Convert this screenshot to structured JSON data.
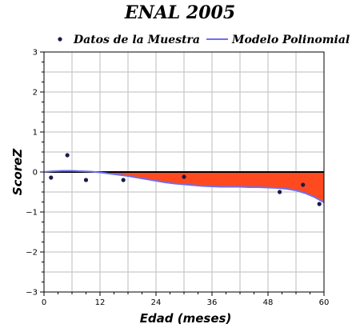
{
  "chart_data": {
    "type": "scatter",
    "title": "ENAL 2005",
    "xlabel": "Edad (meses)",
    "ylabel": "ScoreZ",
    "xlim": [
      0,
      60
    ],
    "ylim": [
      -3,
      3
    ],
    "x_ticks": [
      0,
      12,
      24,
      36,
      48,
      60
    ],
    "y_ticks": [
      -3,
      -2,
      -1,
      0,
      1,
      2,
      3
    ],
    "grid": true,
    "legend_position": "top",
    "colors": {
      "points": "#1a1a4e",
      "model_line": "#6f6ff0",
      "fill": "#ff4a1f",
      "reference_line": "#000000"
    },
    "series": [
      {
        "name": "Datos de la Muestra",
        "kind": "points",
        "x": [
          1.5,
          5,
          9,
          17,
          30,
          50.5,
          55.5,
          59
        ],
        "y": [
          -0.14,
          0.42,
          -0.2,
          -0.2,
          -0.12,
          -0.5,
          -0.32,
          -0.8
        ]
      },
      {
        "name": "Modelo Polinomial",
        "kind": "line",
        "x": [
          0,
          2,
          4,
          6,
          8,
          10,
          12,
          14,
          16,
          18,
          20,
          22,
          24,
          26,
          28,
          30,
          32,
          34,
          36,
          38,
          40,
          42,
          44,
          46,
          48,
          50,
          52,
          54,
          56,
          58,
          60
        ],
        "y": [
          0.0,
          0.02,
          0.03,
          0.03,
          0.02,
          0.01,
          -0.01,
          -0.04,
          -0.07,
          -0.1,
          -0.14,
          -0.18,
          -0.22,
          -0.26,
          -0.29,
          -0.31,
          -0.33,
          -0.35,
          -0.36,
          -0.37,
          -0.37,
          -0.37,
          -0.38,
          -0.38,
          -0.39,
          -0.4,
          -0.42,
          -0.46,
          -0.53,
          -0.63,
          -0.76
        ]
      }
    ]
  }
}
